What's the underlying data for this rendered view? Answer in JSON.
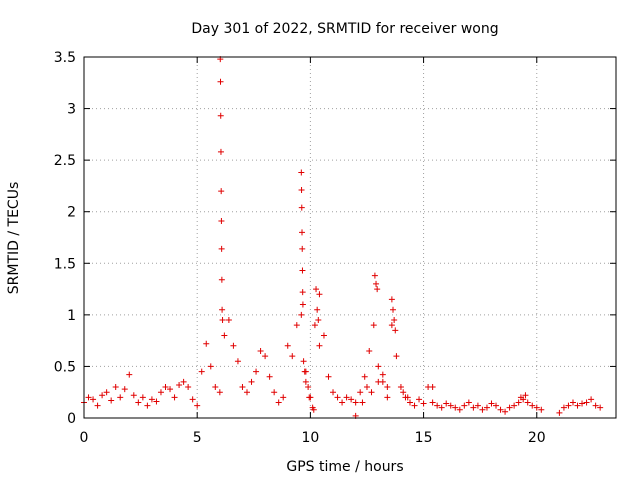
{
  "chart_data": {
    "type": "scatter",
    "title": "Day 301 of 2022, SRMTID for receiver wong",
    "xlabel": "GPS time / hours",
    "ylabel": "SRMTID / TECUs",
    "xlim": [
      0,
      23.5
    ],
    "ylim": [
      0,
      3.5
    ],
    "xticks": [
      0,
      5,
      10,
      15,
      20
    ],
    "xtick_labels": [
      "0",
      "5",
      "10",
      "15",
      "20"
    ],
    "yticks": [
      0,
      0.5,
      1,
      1.5,
      2,
      2.5,
      3,
      3.5
    ],
    "ytick_labels": [
      "0",
      "0.5",
      "1",
      "1.5",
      "2",
      "2.5",
      "3",
      "3.5"
    ],
    "grid": true,
    "marker": "+",
    "color": "#e00000",
    "series": [
      {
        "name": "wong",
        "x": [
          0.0,
          0.2,
          0.4,
          0.6,
          0.8,
          1.0,
          1.2,
          1.4,
          1.6,
          1.8,
          2.0,
          2.2,
          2.4,
          2.6,
          2.8,
          3.0,
          3.2,
          3.4,
          3.6,
          3.8,
          4.0,
          4.2,
          4.4,
          4.6,
          4.8,
          5.0,
          5.2,
          5.4,
          5.6,
          5.8,
          6.0,
          6.2,
          6.4,
          6.6,
          6.8,
          7.0,
          7.2,
          7.4,
          7.6,
          7.8,
          8.0,
          8.2,
          8.4,
          8.6,
          8.8,
          9.0,
          9.2,
          9.4,
          9.6,
          9.8,
          10.0,
          10.2,
          10.4,
          10.6,
          10.8,
          11.0,
          11.2,
          11.4,
          11.6,
          11.8,
          12.0,
          12.2,
          12.4,
          12.6,
          12.8,
          13.0,
          13.2,
          13.4,
          13.6,
          13.8,
          14.0,
          14.2,
          14.4,
          14.6,
          14.8,
          15.0,
          15.2,
          15.4,
          15.6,
          15.8,
          16.0,
          16.2,
          16.4,
          16.6,
          16.8,
          17.0,
          17.2,
          17.4,
          17.6,
          17.8,
          18.0,
          18.2,
          18.4,
          18.6,
          18.8,
          19.0,
          19.2,
          19.4,
          19.6,
          19.8,
          20.0,
          20.2,
          21.0,
          21.2,
          21.4,
          21.6,
          21.8,
          22.0,
          22.2,
          22.4,
          22.6,
          22.8,
          6.02,
          6.03,
          6.04,
          6.05,
          6.06,
          6.07,
          6.08,
          6.09,
          6.1,
          6.12,
          9.6,
          9.61,
          9.62,
          9.63,
          9.64,
          9.65,
          9.66,
          9.67,
          12.85,
          12.9,
          12.95,
          13.6,
          13.65,
          13.7,
          13.75,
          10.25,
          10.3,
          10.35,
          10.4,
          9.7,
          9.75,
          9.8,
          9.9,
          9.95,
          10.1,
          10.15,
          12.0,
          12.3,
          12.5,
          12.7,
          13.0,
          13.2,
          13.4,
          14.1,
          14.3,
          15.4,
          19.3,
          19.5
        ],
        "y": [
          0.15,
          0.2,
          0.18,
          0.12,
          0.22,
          0.25,
          0.17,
          0.3,
          0.2,
          0.28,
          0.42,
          0.22,
          0.15,
          0.2,
          0.12,
          0.18,
          0.16,
          0.25,
          0.3,
          0.28,
          0.2,
          0.32,
          0.35,
          0.3,
          0.18,
          0.12,
          0.45,
          0.72,
          0.5,
          0.3,
          0.25,
          0.8,
          0.95,
          0.7,
          0.55,
          0.3,
          0.25,
          0.35,
          0.45,
          0.65,
          0.6,
          0.4,
          0.25,
          0.15,
          0.2,
          0.7,
          0.6,
          0.9,
          1.0,
          0.45,
          0.2,
          0.9,
          1.2,
          0.8,
          0.4,
          0.25,
          0.2,
          0.15,
          0.2,
          0.18,
          0.15,
          0.25,
          0.4,
          0.65,
          0.9,
          0.5,
          0.35,
          0.2,
          0.9,
          0.6,
          0.3,
          0.2,
          0.15,
          0.12,
          0.18,
          0.14,
          0.3,
          0.15,
          0.12,
          0.1,
          0.14,
          0.12,
          0.1,
          0.08,
          0.12,
          0.15,
          0.1,
          0.12,
          0.08,
          0.1,
          0.14,
          0.12,
          0.08,
          0.06,
          0.1,
          0.12,
          0.15,
          0.18,
          0.15,
          0.12,
          0.1,
          0.08,
          0.05,
          0.1,
          0.12,
          0.15,
          0.12,
          0.14,
          0.15,
          0.18,
          0.12,
          0.1,
          3.48,
          3.26,
          2.93,
          2.58,
          2.2,
          1.91,
          1.64,
          1.34,
          1.05,
          0.95,
          2.38,
          2.21,
          2.04,
          1.8,
          1.64,
          1.43,
          1.22,
          1.1,
          1.38,
          1.3,
          1.25,
          1.15,
          1.05,
          0.95,
          0.85,
          1.25,
          1.05,
          0.95,
          0.7,
          0.55,
          0.45,
          0.35,
          0.3,
          0.2,
          0.1,
          0.08,
          0.02,
          0.15,
          0.3,
          0.25,
          0.35,
          0.42,
          0.3,
          0.25,
          0.2,
          0.3,
          0.2,
          0.22
        ]
      }
    ]
  }
}
